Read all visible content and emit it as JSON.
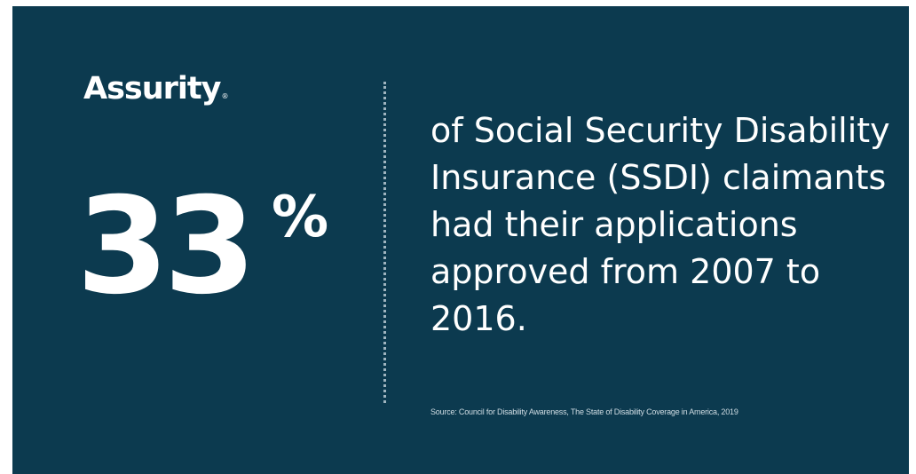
{
  "brand": {
    "name": "Assurity",
    "registered_mark": "®"
  },
  "stat": {
    "value": "33",
    "unit": "%"
  },
  "statement": "of Social Security Disability Insurance (SSDI) claimants had their applications approved from 2007 to 2016.",
  "source": "Source: Council for Disability Awareness, The State of Disability Coverage in America, 2019",
  "colors": {
    "background": "#0c3a4f",
    "text": "#ffffff",
    "divider": "#9fb4bf"
  }
}
